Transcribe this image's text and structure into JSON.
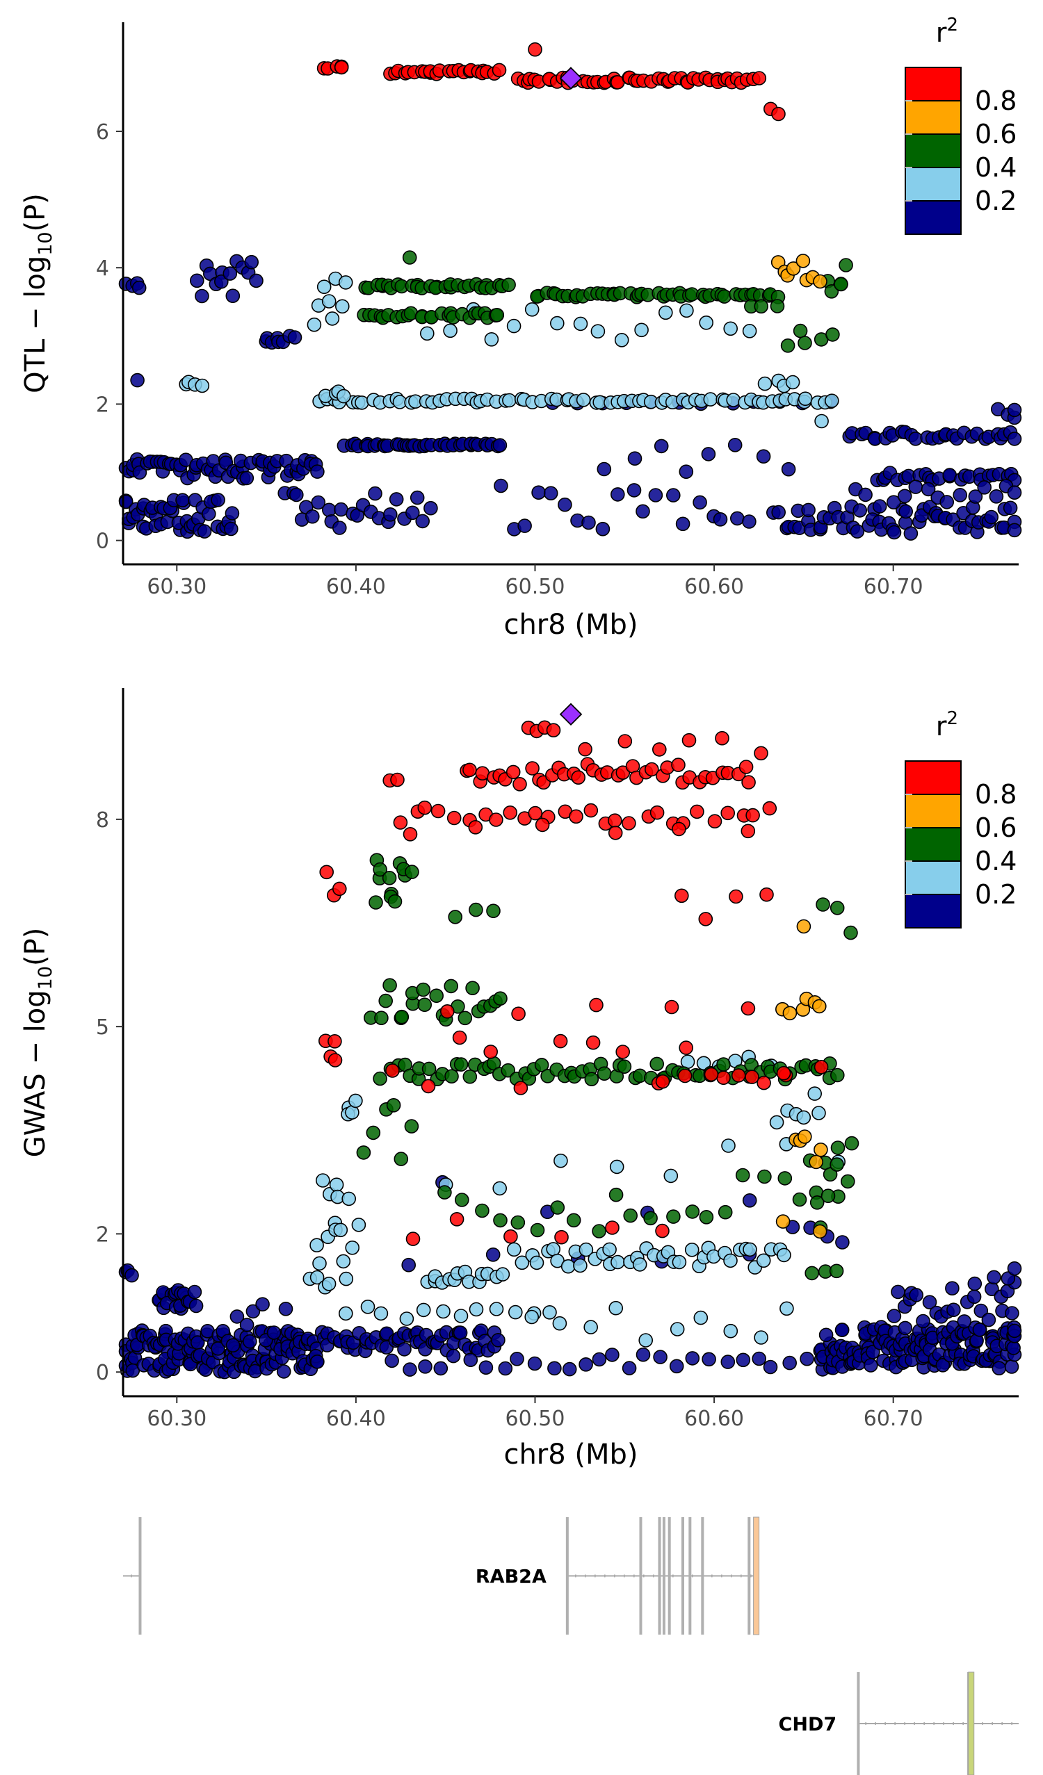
{
  "chart_data": [
    {
      "type": "scatter",
      "name": "qtl",
      "xlabel": "chr8 (Mb)",
      "ylabel_prefix": "QTL − log",
      "ylabel_sub": "10",
      "ylabel_suffix": "(P)",
      "xlim": [
        60.27,
        60.77
      ],
      "ylim": [
        -0.35,
        7.6
      ],
      "xticks": [
        60.3,
        60.4,
        60.5,
        60.6,
        60.7
      ],
      "xtick_labels": [
        "60.30",
        "60.40",
        "60.50",
        "60.60",
        "60.70"
      ],
      "yticks": [
        0,
        2,
        4,
        6
      ],
      "ytick_labels": [
        "0",
        "2",
        "4",
        "6"
      ],
      "grid": false,
      "legend_position": "top-right",
      "lead_variant": {
        "x": 60.52,
        "y": 6.78,
        "color": "#9B30FF",
        "shape": "diamond"
      },
      "point_groups": [
        {
          "r2_bin": "0.8–1.0",
          "color": "#FF0000",
          "segments": [
            [
              60.383,
              60.393,
              6.95,
              0.03,
              5
            ],
            [
              60.42,
              60.48,
              6.87,
              0.03,
              24
            ],
            [
              60.49,
              60.625,
              6.75,
              0.04,
              50
            ],
            [
              60.5,
              60.5,
              7.2,
              0,
              1
            ],
            [
              60.63,
              60.635,
              6.3,
              0.06,
              2
            ]
          ]
        },
        {
          "r2_bin": "0.6–0.8",
          "color": "#FFA500",
          "segments": [
            [
              60.635,
              60.66,
              3.95,
              0.18,
              8
            ]
          ]
        },
        {
          "r2_bin": "0.4–0.6",
          "color": "#006400",
          "segments": [
            [
              60.405,
              60.485,
              3.73,
              0.03,
              30
            ],
            [
              60.405,
              60.48,
              3.3,
              0.04,
              26
            ],
            [
              60.5,
              60.635,
              3.6,
              0.03,
              45
            ],
            [
              60.62,
              60.635,
              3.45,
              0.03,
              3
            ],
            [
              60.43,
              60.43,
              4.15,
              0,
              1
            ],
            [
              60.665,
              60.675,
              3.9,
              0.25,
              5
            ],
            [
              60.64,
              60.665,
              3.0,
              0.15,
              5
            ]
          ]
        },
        {
          "r2_bin": "0.2–0.4",
          "color": "#87CEEB",
          "segments": [
            [
              60.375,
              60.395,
              3.5,
              0.35,
              8
            ],
            [
              60.38,
              60.665,
              2.05,
              0.03,
              70
            ],
            [
              60.385,
              60.395,
              2.15,
              0.04,
              4
            ],
            [
              60.44,
              60.62,
              3.15,
              0.25,
              16
            ],
            [
              60.305,
              60.315,
              2.3,
              0.05,
              4
            ],
            [
              60.63,
              60.645,
              2.3,
              0.05,
              4
            ],
            [
              60.66,
              60.66,
              1.75,
              0,
              1
            ]
          ]
        },
        {
          "r2_bin": "0.0–0.2",
          "color": "#00008B",
          "segments": [
            [
              60.27,
              60.38,
              1.05,
              0.15,
              60
            ],
            [
              60.27,
              60.33,
              0.35,
              0.25,
              45
            ],
            [
              60.27,
              60.28,
              3.75,
              0.05,
              4
            ],
            [
              60.31,
              60.345,
              3.7,
              0.4,
              14
            ],
            [
              60.35,
              60.365,
              2.95,
              0.06,
              8
            ],
            [
              60.278,
              60.278,
              2.35,
              0,
              1
            ],
            [
              60.36,
              60.44,
              0.45,
              0.3,
              25
            ],
            [
              60.395,
              60.48,
              1.4,
              0.02,
              40
            ],
            [
              60.48,
              60.62,
              0.5,
              0.35,
              20
            ],
            [
              60.54,
              60.64,
              1.2,
              0.2,
              8
            ],
            [
              60.635,
              60.77,
              0.3,
              0.2,
              60
            ],
            [
              60.675,
              60.77,
              1.55,
              0.06,
              30
            ],
            [
              60.69,
              60.77,
              0.95,
              0.07,
              25
            ],
            [
              60.68,
              60.77,
              0.65,
              0.15,
              15
            ],
            [
              60.76,
              60.77,
              1.85,
              0.08,
              4
            ],
            [
              60.51,
              60.665,
              2.02,
              0.02,
              12
            ]
          ]
        }
      ]
    },
    {
      "type": "scatter",
      "name": "gwas",
      "xlabel": "chr8 (Mb)",
      "ylabel_prefix": "GWAS − log",
      "ylabel_sub": "10",
      "ylabel_suffix": "(P)",
      "xlim": [
        60.27,
        60.77
      ],
      "ylim": [
        -0.35,
        9.9
      ],
      "xticks": [
        60.3,
        60.4,
        60.5,
        60.6,
        60.7
      ],
      "xtick_labels": [
        "60.30",
        "60.40",
        "60.50",
        "60.60",
        "60.70"
      ],
      "yticks": [
        0,
        2,
        5,
        8
      ],
      "ytick_labels": [
        "0",
        "2",
        "5",
        "8"
      ],
      "grid": false,
      "legend_position": "top-right",
      "lead_variant": {
        "x": 60.52,
        "y": 9.52,
        "color": "#9B30FF",
        "shape": "diamond"
      },
      "point_groups": [
        {
          "r2_bin": "0.8–1.0",
          "color": "#FF0000",
          "segments": [
            [
              60.495,
              60.51,
              9.3,
              0.04,
              4
            ],
            [
              60.53,
              60.625,
              9.1,
              0.15,
              6
            ],
            [
              60.42,
              60.425,
              8.55,
              0.05,
              2
            ],
            [
              60.46,
              60.62,
              8.65,
              0.15,
              40
            ],
            [
              60.425,
              60.63,
              8.05,
              0.12,
              28
            ],
            [
              60.43,
              60.62,
              7.85,
              0.08,
              6
            ],
            [
              60.385,
              60.39,
              7.1,
              0.2,
              3
            ],
            [
              60.45,
              60.62,
              5.25,
              0.1,
              5
            ],
            [
              60.385,
              60.39,
              4.6,
              0.2,
              4
            ],
            [
              60.42,
              60.66,
              4.5,
              0.4,
              14
            ],
            [
              60.57,
              60.64,
              4.25,
              0.08,
              6
            ],
            [
              60.43,
              60.57,
              2.1,
              0.2,
              6
            ],
            [
              60.58,
              60.63,
              6.7,
              0.35,
              4
            ]
          ]
        },
        {
          "r2_bin": "0.6–0.8",
          "color": "#FFA500",
          "segments": [
            [
              60.64,
              60.66,
              5.2,
              0.25,
              6
            ],
            [
              60.645,
              60.66,
              3.3,
              0.3,
              5
            ],
            [
              60.64,
              60.66,
              2.1,
              0.1,
              2
            ],
            [
              60.65,
              60.65,
              6.45,
              0,
              1
            ]
          ]
        },
        {
          "r2_bin": "0.4–0.6",
          "color": "#006400",
          "segments": [
            [
              60.41,
              60.43,
              7.1,
              0.35,
              12
            ],
            [
              60.41,
              60.48,
              5.35,
              0.25,
              22
            ],
            [
              60.415,
              60.67,
              4.35,
              0.12,
              70
            ],
            [
              60.45,
              60.67,
              2.4,
              0.45,
              22
            ],
            [
              60.405,
              60.43,
              3.4,
              0.5,
              6
            ],
            [
              60.455,
              60.475,
              6.6,
              0.15,
              3
            ],
            [
              60.655,
              60.675,
              2.8,
              0.6,
              10
            ],
            [
              60.66,
              60.675,
              6.5,
              0.3,
              3
            ],
            [
              60.655,
              60.67,
              1.45,
              0.1,
              3
            ]
          ]
        },
        {
          "r2_bin": "0.2–0.4",
          "color": "#87CEEB",
          "segments": [
            [
              60.375,
              60.4,
              1.7,
              0.5,
              14
            ],
            [
              60.38,
              60.395,
              2.6,
              0.2,
              5
            ],
            [
              60.395,
              60.4,
              4.0,
              0.3,
              4
            ],
            [
              60.44,
              60.48,
              1.35,
              0.1,
              14
            ],
            [
              60.49,
              60.64,
              1.65,
              0.15,
              40
            ],
            [
              60.395,
              60.51,
              0.85,
              0.1,
              12
            ],
            [
              60.5,
              60.64,
              0.9,
              0.45,
              10
            ],
            [
              60.45,
              60.67,
              2.9,
              0.4,
              8
            ],
            [
              60.585,
              60.63,
              4.5,
              0.08,
              6
            ],
            [
              60.635,
              60.66,
              3.9,
              0.3,
              6
            ]
          ]
        },
        {
          "r2_bin": "0.0–0.2",
          "color": "#00008B",
          "segments": [
            [
              60.27,
              60.38,
              0.3,
              0.3,
              150
            ],
            [
              60.29,
              60.31,
              1.05,
              0.15,
              20
            ],
            [
              60.27,
              60.275,
              1.3,
              0.2,
              3
            ],
            [
              60.33,
              60.36,
              0.6,
              0.4,
              8
            ],
            [
              60.38,
              60.48,
              0.45,
              0.15,
              55
            ],
            [
              60.42,
              60.66,
              0.15,
              0.12,
              28
            ],
            [
              60.43,
              60.62,
              1.7,
              0.2,
              5
            ],
            [
              60.45,
              60.62,
              2.6,
              0.4,
              4
            ],
            [
              60.66,
              60.77,
              0.35,
              0.3,
              150
            ],
            [
              60.7,
              60.77,
              1.0,
              0.3,
              25
            ],
            [
              60.755,
              60.77,
              1.45,
              0.1,
              3
            ],
            [
              60.645,
              60.67,
              1.95,
              0.2,
              4
            ]
          ]
        }
      ]
    }
  ],
  "legend": {
    "title_base": "r",
    "title_sup": "2",
    "swatches": [
      "#FF0000",
      "#FFA500",
      "#006400",
      "#87CEEB",
      "#00008B"
    ],
    "labels": [
      "0.8",
      "0.6",
      "0.4",
      "0.2"
    ]
  },
  "genes": [
    {
      "name": "",
      "start": 60.27,
      "end": 60.28,
      "exons": [
        {
          "x": 60.2795,
          "color": "#b0b0b0"
        }
      ],
      "label_side": "none",
      "row": 0
    },
    {
      "name": "RAB2A",
      "start": 60.518,
      "end": 60.625,
      "exons": [
        {
          "x": 60.518,
          "color": "#b0b0b0"
        },
        {
          "x": 60.559,
          "color": "#b0b0b0"
        },
        {
          "x": 60.5695,
          "color": "#b0b0b0"
        },
        {
          "x": 60.572,
          "color": "#b0b0b0"
        },
        {
          "x": 60.575,
          "color": "#b0b0b0"
        },
        {
          "x": 60.5825,
          "color": "#b0b0b0"
        },
        {
          "x": 60.5865,
          "color": "#b0b0b0"
        },
        {
          "x": 60.5935,
          "color": "#b0b0b0"
        },
        {
          "x": 60.6195,
          "color": "#b0b0b0"
        },
        {
          "x": 60.6235,
          "color": "#FAC898"
        }
      ],
      "label_side": "left",
      "row": 0
    },
    {
      "name": "CHD7",
      "start": 60.68,
      "end": 60.77,
      "exons": [
        {
          "x": 60.6805,
          "color": "#b0b0b0"
        },
        {
          "x": 60.742,
          "color": "#b0b0b0"
        },
        {
          "x": 60.7435,
          "color": "#C9D67A"
        }
      ],
      "label_side": "left",
      "row": 1
    }
  ]
}
